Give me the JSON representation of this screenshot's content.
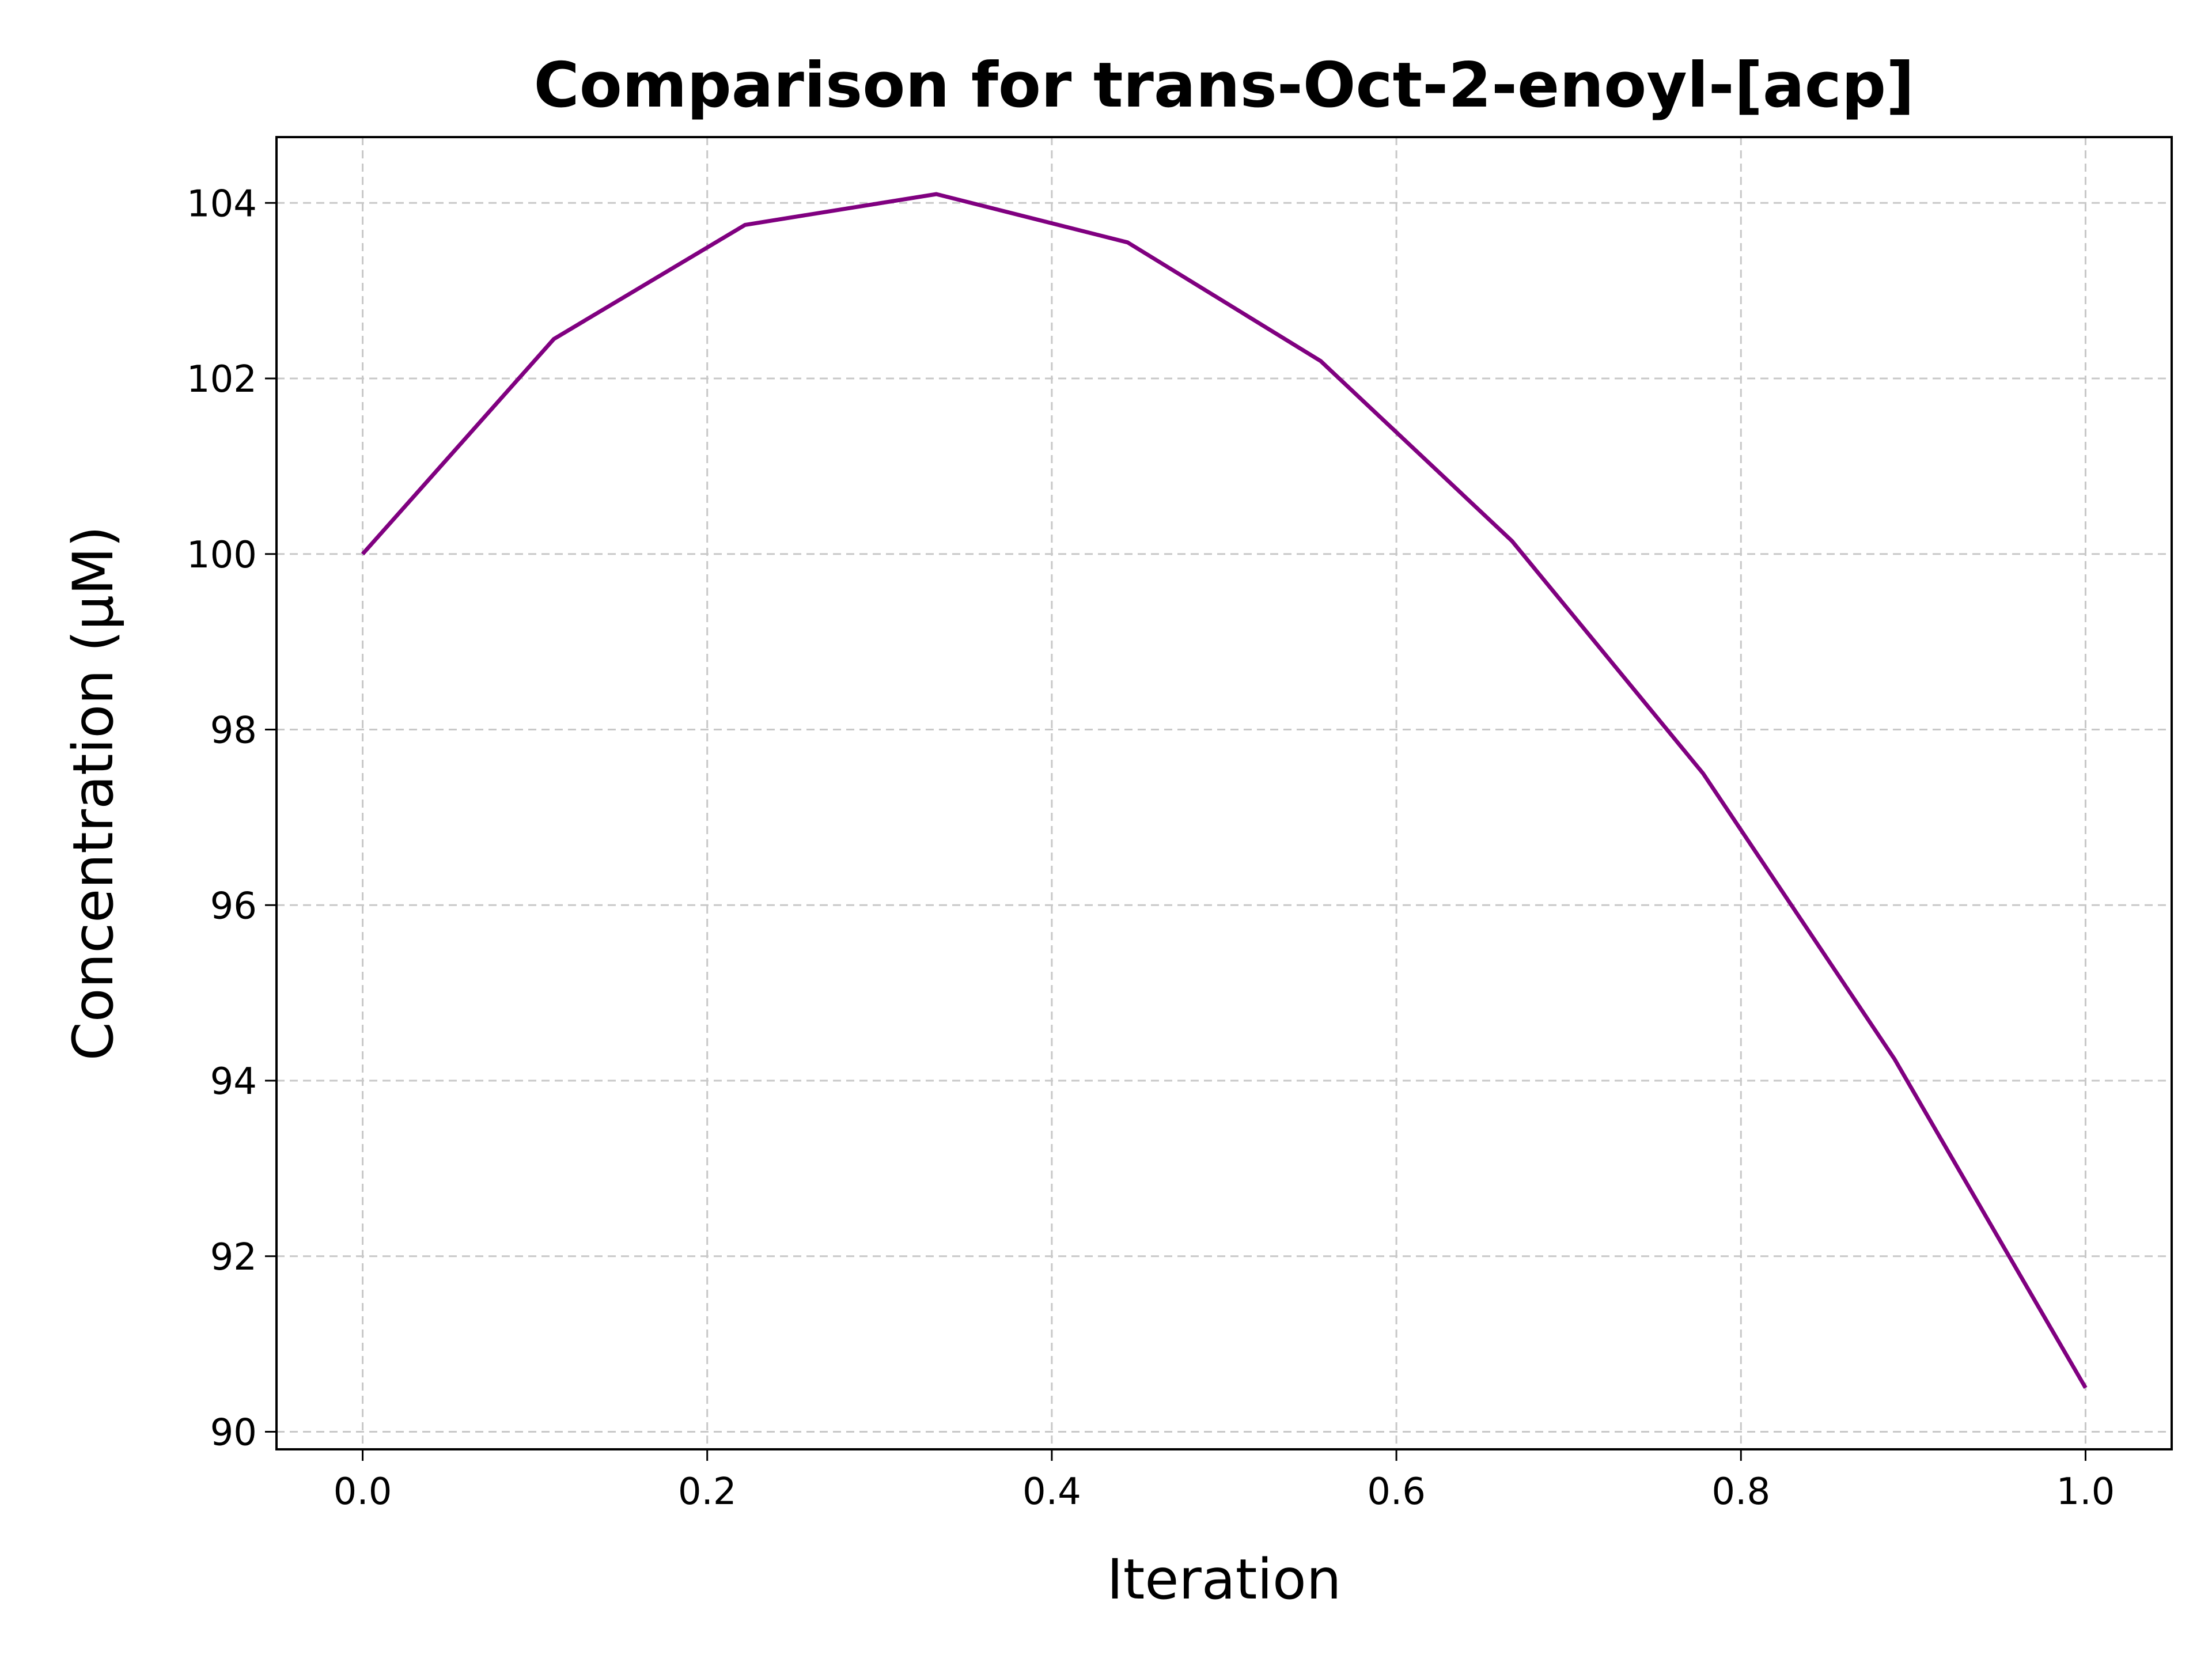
{
  "chart_data": {
    "type": "line",
    "title": "Comparison for trans-Oct-2-enoyl-[acp]",
    "xlabel": "Iteration",
    "ylabel": "Concentration (μM)",
    "xlim": [
      -0.05,
      1.05
    ],
    "ylim": [
      89.8,
      104.75
    ],
    "xticks": [
      0.0,
      0.2,
      0.4,
      0.6,
      0.8,
      1.0
    ],
    "xtick_labels": [
      "0.0",
      "0.2",
      "0.4",
      "0.6",
      "0.8",
      "1.0"
    ],
    "yticks": [
      90,
      92,
      94,
      96,
      98,
      100,
      102,
      104
    ],
    "ytick_labels": [
      "90",
      "92",
      "94",
      "96",
      "98",
      "100",
      "102",
      "104"
    ],
    "grid": true,
    "series": [
      {
        "color": "#800080",
        "x": [
          0.0,
          0.111,
          0.222,
          0.333,
          0.444,
          0.556,
          0.667,
          0.778,
          0.889,
          1.0
        ],
        "y": [
          100.0,
          102.45,
          103.75,
          104.1,
          103.55,
          102.2,
          100.15,
          97.5,
          94.25,
          90.5
        ]
      }
    ]
  }
}
